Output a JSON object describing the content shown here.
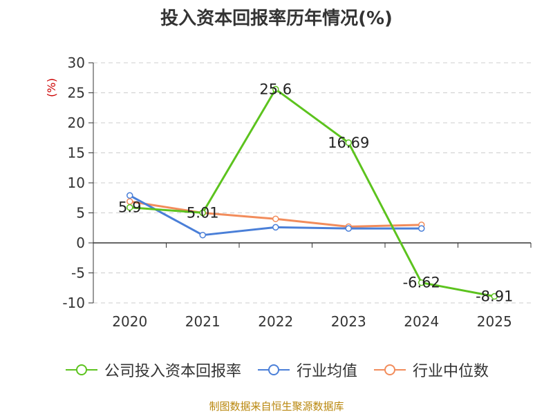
{
  "chart_data": {
    "type": "line",
    "title": "投入资本回报率历年情况(%)",
    "ylabel": "(%)",
    "categories": [
      "2020",
      "2021",
      "2022",
      "2023",
      "2024",
      "2025"
    ],
    "ylim": [
      -10,
      30
    ],
    "yticks": [
      30,
      25,
      20,
      15,
      10,
      5,
      0,
      -5,
      -10
    ],
    "grid": true,
    "legend_position": "bottom",
    "series": [
      {
        "name": "公司投入资本回报率",
        "color": "#5cc31e",
        "values": [
          5.9,
          5.01,
          25.6,
          16.69,
          -6.62,
          -8.91
        ],
        "labels": [
          "5.9",
          "5.01",
          "25.6",
          "16.69",
          "-6.62",
          "-8.91"
        ]
      },
      {
        "name": "行业均值",
        "color": "#4a7fd8",
        "values": [
          7.9,
          1.3,
          2.6,
          2.4,
          2.4,
          null
        ]
      },
      {
        "name": "行业中位数",
        "color": "#f28c5b",
        "values": [
          6.9,
          5.0,
          4.0,
          2.7,
          3.0,
          null
        ]
      }
    ]
  },
  "source": "制图数据来自恒生聚源数据库"
}
